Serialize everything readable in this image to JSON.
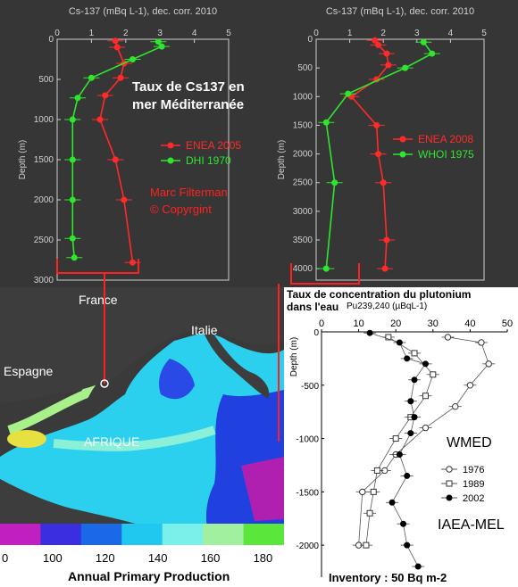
{
  "colors": {
    "red": "#ff2a2a",
    "green": "#2ee62e",
    "map_bg": "#3a3a3a",
    "panel_bg": "#363636",
    "annot_red": "#ff2020"
  },
  "chart_data": [
    {
      "id": "cs137_left",
      "type": "line",
      "title": "Cs-137 (mBq L-1), dec. corr. 2010",
      "ylabel": "Depth (m)",
      "xlim": [
        0,
        5
      ],
      "ylim": [
        3000,
        0
      ],
      "x_ticks": [
        0,
        1,
        2,
        3,
        4,
        5
      ],
      "y_ticks": [
        0,
        500,
        1000,
        1500,
        2000,
        2500,
        3000
      ],
      "legend": "center-right",
      "series": [
        {
          "name": "ENEA 2005",
          "color": "#ff2a2a",
          "points": [
            [
              1.7,
              20
            ],
            [
              1.75,
              100
            ],
            [
              1.95,
              300
            ],
            [
              1.85,
              480
            ],
            [
              1.4,
              700
            ],
            [
              1.25,
              1000
            ],
            [
              1.7,
              1500
            ],
            [
              1.95,
              2000
            ],
            [
              2.2,
              2780
            ]
          ]
        },
        {
          "name": "DHI 1970",
          "color": "#2ee62e",
          "points": [
            [
              2.95,
              30
            ],
            [
              3.05,
              90
            ],
            [
              2.2,
              250
            ],
            [
              1.0,
              480
            ],
            [
              0.6,
              730
            ],
            [
              0.45,
              1000
            ],
            [
              0.45,
              1500
            ],
            [
              0.45,
              2000
            ],
            [
              0.45,
              2480
            ],
            [
              0.5,
              2720
            ]
          ]
        }
      ]
    },
    {
      "id": "cs137_right",
      "type": "line",
      "title": "Cs-137 (mBq L-1), dec. corr. 2010",
      "ylabel": "Depth (m)",
      "xlim": [
        0,
        5
      ],
      "ylim": [
        4200,
        0
      ],
      "x_ticks": [
        0,
        1,
        2,
        3,
        4,
        5
      ],
      "y_ticks": [
        0,
        500,
        1000,
        1500,
        2000,
        2500,
        3000,
        3500,
        4000
      ],
      "legend": "center-right",
      "series": [
        {
          "name": "ENEA 2008",
          "color": "#ff2a2a",
          "points": [
            [
              1.75,
              20
            ],
            [
              1.85,
              100
            ],
            [
              2.1,
              250
            ],
            [
              2.15,
              450
            ],
            [
              1.8,
              700
            ],
            [
              1.05,
              1000
            ],
            [
              1.8,
              1500
            ],
            [
              1.85,
              2000
            ],
            [
              2.0,
              2500
            ],
            [
              2.1,
              3500
            ],
            [
              2.05,
              4000
            ]
          ]
        },
        {
          "name": "WHOI 1975",
          "color": "#2ee62e",
          "points": [
            [
              3.2,
              50
            ],
            [
              3.45,
              250
            ],
            [
              2.65,
              500
            ],
            [
              0.95,
              950
            ],
            [
              0.3,
              1450
            ],
            [
              0.55,
              2500
            ],
            [
              0.3,
              4000
            ]
          ]
        }
      ]
    },
    {
      "id": "plutonium",
      "type": "line",
      "title": "Taux de concentration du plutonium dans l'eau",
      "unit_label": "Pu239,240 (µBqL-1)",
      "ylabel": "Depth (m)",
      "xlim": [
        0,
        50
      ],
      "ylim": [
        -2300,
        0
      ],
      "x_ticks": [
        0,
        10,
        20,
        30,
        40,
        50
      ],
      "y_ticks": [
        0,
        -500,
        -1000,
        -1500,
        -2000
      ],
      "series": [
        {
          "name": "1976",
          "marker": "open-circle",
          "points": [
            [
              34,
              -50
            ],
            [
              43,
              -100
            ],
            [
              45,
              -300
            ],
            [
              40,
              -500
            ],
            [
              36,
              -700
            ],
            [
              28,
              -900
            ],
            [
              20,
              -1150
            ],
            [
              17,
              -1300
            ],
            [
              11,
              -1500
            ],
            [
              10,
              -2000
            ]
          ]
        },
        {
          "name": "1989",
          "marker": "open-square",
          "points": [
            [
              18,
              -50
            ],
            [
              25,
              -200
            ],
            [
              30,
              -400
            ],
            [
              28,
              -600
            ],
            [
              24,
              -800
            ],
            [
              20,
              -1000
            ],
            [
              15,
              -1300
            ],
            [
              14,
              -1500
            ],
            [
              13,
              -1700
            ],
            [
              12,
              -2000
            ]
          ]
        },
        {
          "name": "2002",
          "marker": "filled-circle",
          "points": [
            [
              13,
              -10
            ],
            [
              21,
              -100
            ],
            [
              23,
              -250
            ],
            [
              28,
              -300
            ],
            [
              25,
              -450
            ],
            [
              24,
              -650
            ],
            [
              25,
              -800
            ],
            [
              24,
              -950
            ],
            [
              21,
              -1150
            ],
            [
              23,
              -1350
            ],
            [
              19,
              -1600
            ],
            [
              22,
              -1800
            ],
            [
              23,
              -2000
            ],
            [
              26,
              -2200
            ]
          ]
        }
      ]
    }
  ],
  "map": {
    "labels": {
      "france": "France",
      "italie": "Italie",
      "espagne": "Espagne",
      "afrique": "AFRIQUE"
    },
    "colorbar": {
      "ticks": [
        "0",
        "100",
        "120",
        "140",
        "160",
        "180"
      ],
      "label": "Annual Primary Production",
      "colors": [
        "#c020c0",
        "#3a2ee0",
        "#1a6ae8",
        "#20c8f0",
        "#7af0ea",
        "#a0f0a0",
        "#5ae63a"
      ]
    }
  },
  "annotations": {
    "taux_title": "Taux de Cs137 en\nmer Méditerranée",
    "author_line1": "Marc Filterman",
    "author_line2": "© Copyrgint",
    "wmed": "WMED",
    "iaea": "IAEA-MEL",
    "inventory": "Inventory : 50 Bq m-2",
    "pu_title_line1": "Taux de concentration du plutonium",
    "pu_title_line2": "dans l'eau",
    "pu_unit": "Pu239,240 (µBqL-1)"
  }
}
